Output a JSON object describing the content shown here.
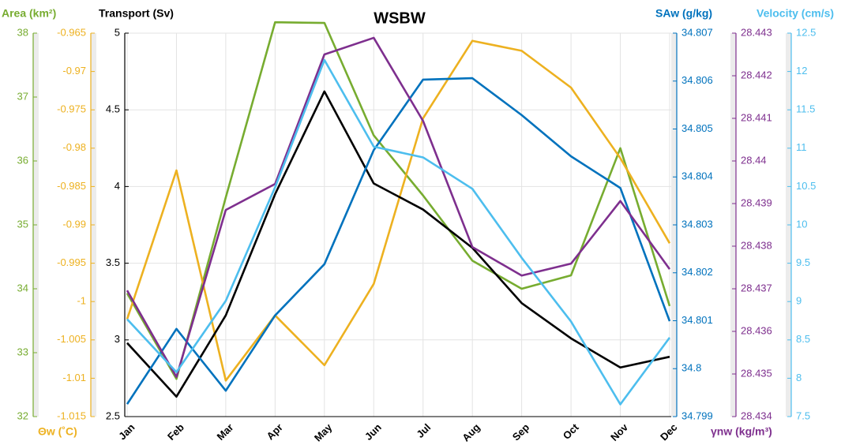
{
  "chart_data": {
    "type": "line",
    "title": "WSBW",
    "categories": [
      "Jan",
      "Feb",
      "Mar",
      "Apr",
      "May",
      "Jun",
      "Jul",
      "Aug",
      "Sep",
      "Oct",
      "Nov",
      "Dec"
    ],
    "grid": true,
    "series": [
      {
        "name": "Area (km²)",
        "color": "#77ac30",
        "values": [
          33.93,
          32.59,
          35.43,
          38.17,
          38.16,
          36.4,
          35.46,
          34.44,
          34.0,
          34.21,
          36.2,
          33.73
        ],
        "ylim": [
          32,
          38
        ],
        "yticks": [
          32,
          33,
          34,
          35,
          36,
          37,
          38
        ]
      },
      {
        "name": "Θw (˚C)",
        "color": "#edb120",
        "values": [
          -1.0023,
          -0.9829,
          -1.0103,
          -1.0018,
          -1.0083,
          -0.9977,
          -0.9761,
          -0.966,
          -0.9673,
          -0.9721,
          -0.9813,
          -0.9924
        ],
        "ylim": [
          -1.015,
          -0.965
        ],
        "yticks": [
          -1.015,
          -1.01,
          -1.005,
          -1,
          -0.995,
          -0.99,
          -0.985,
          -0.98,
          -0.975,
          -0.97,
          -0.965
        ]
      },
      {
        "name": "Transport (Sv)",
        "color": "#000000",
        "values": [
          2.98,
          2.63,
          3.16,
          3.95,
          4.62,
          4.02,
          3.85,
          3.6,
          3.24,
          3.01,
          2.82,
          2.89
        ],
        "ylim": [
          2.5,
          5
        ],
        "yticks": [
          2.5,
          3,
          3.5,
          4,
          4.5,
          5
        ]
      },
      {
        "name": "SAw (g/kg)",
        "color": "#0072bd",
        "values": [
          34.79926,
          34.80083,
          34.79954,
          34.80111,
          34.80218,
          34.80456,
          34.80603,
          34.80606,
          34.80529,
          34.80443,
          34.80377,
          34.80099
        ],
        "ylim": [
          34.799,
          34.807
        ],
        "yticks": [
          34.799,
          34.8,
          34.801,
          34.802,
          34.803,
          34.804,
          34.805,
          34.806,
          34.807
        ]
      },
      {
        "name": "γnw (kg/m³)",
        "color": "#7e2f8e",
        "values": [
          28.43696,
          28.43493,
          28.43885,
          28.43946,
          28.4425,
          28.44289,
          28.44094,
          28.43798,
          28.43731,
          28.43759,
          28.43906,
          28.43746
        ],
        "ylim": [
          28.434,
          28.443
        ],
        "yticks": [
          28.434,
          28.435,
          28.436,
          28.437,
          28.438,
          28.439,
          28.44,
          28.441,
          28.442,
          28.443
        ]
      },
      {
        "name": "Velocity (cm/s)",
        "color": "#4dbeee",
        "values": [
          8.77,
          8.08,
          9.01,
          10.49,
          12.15,
          11.02,
          10.88,
          10.47,
          9.57,
          8.74,
          7.66,
          8.53
        ],
        "ylim": [
          7.5,
          12.5
        ],
        "yticks": [
          7.5,
          8,
          8.5,
          9,
          9.5,
          10,
          10.5,
          11,
          11.5,
          12,
          12.5
        ]
      }
    ]
  }
}
